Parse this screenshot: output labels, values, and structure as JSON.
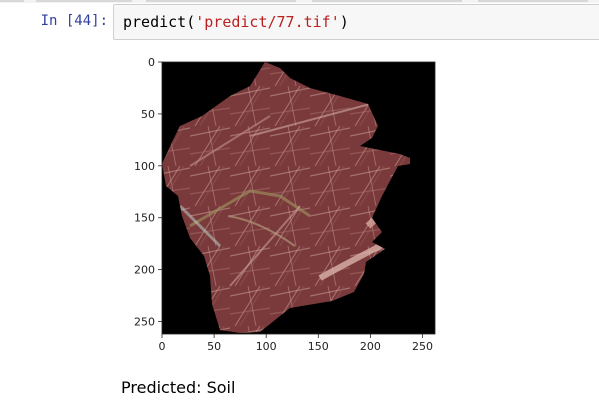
{
  "cell": {
    "prompt": "In [44]:",
    "code_func": "predict(",
    "code_arg": "'predict/77.tif'",
    "code_close": ")"
  },
  "chart_data": {
    "type": "image",
    "content": "rendered image of a reddish-brown soil sample on black background",
    "x_ticks": [
      "0",
      "50",
      "100",
      "150",
      "200",
      "250"
    ],
    "y_ticks": [
      "0",
      "50",
      "100",
      "150",
      "200",
      "250"
    ],
    "xlim": [
      0,
      262
    ],
    "ylim": [
      262,
      0
    ]
  },
  "output": {
    "text": "Predicted: Soil"
  },
  "colors": {
    "prompt": "#303f9f",
    "string": "#ba2121",
    "soil": "#7a3a3c"
  }
}
